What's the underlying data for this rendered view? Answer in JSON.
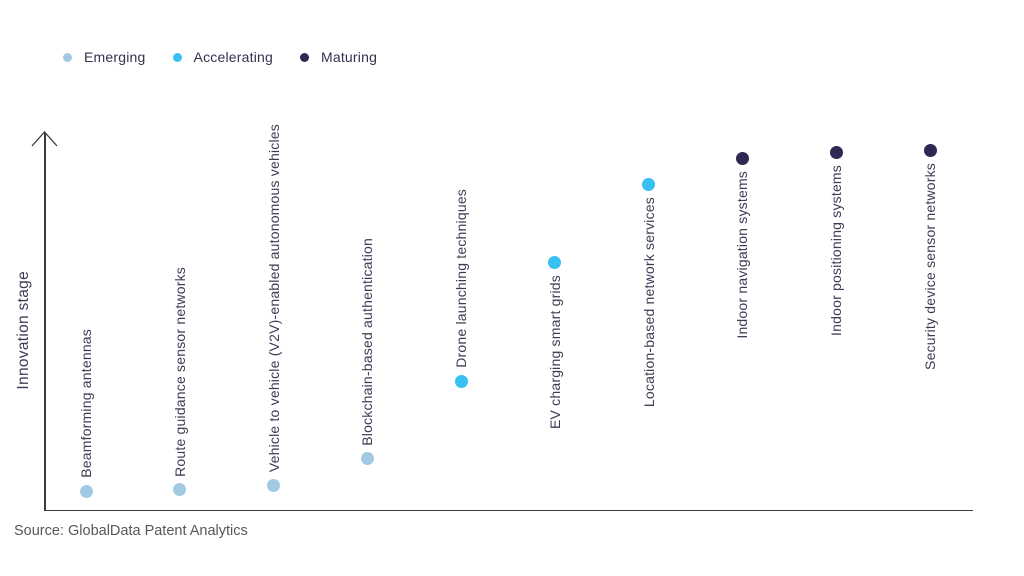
{
  "legend": {
    "items": [
      {
        "label": "Emerging",
        "color": "#a2c9e2"
      },
      {
        "label": "Accelerating",
        "color": "#38c0f2"
      },
      {
        "label": "Maturing",
        "color": "#2f2852"
      }
    ]
  },
  "axis": {
    "ylabel": "Innovation stage"
  },
  "source": "Source: GlobalData Patent Analytics",
  "chart_data": {
    "type": "scatter",
    "title": "",
    "xlabel": "",
    "ylabel": "Innovation stage",
    "y_axis": {
      "qualitative": true,
      "min": 0,
      "max": 100,
      "ticks": "none",
      "grid": false
    },
    "legend_position": "top-left",
    "legend": [
      "Emerging",
      "Accelerating",
      "Maturing"
    ],
    "stage_colors": {
      "Emerging": "#a2c9e2",
      "Accelerating": "#38c0f2",
      "Maturing": "#2f2852"
    },
    "points": [
      {
        "label": "Beamforming antennas",
        "stage": "Emerging",
        "value": 5.0
      },
      {
        "label": "Route guidance sensor networks",
        "stage": "Emerging",
        "value": 5.3
      },
      {
        "label": "Vehicle to vehicle (V2V)-enabled autonomous vehicles",
        "stage": "Emerging",
        "value": 6.6
      },
      {
        "label": "Blockchain-based authentication",
        "stage": "Emerging",
        "value": 13.5
      },
      {
        "label": "Drone launching techniques",
        "stage": "Accelerating",
        "value": 34.1
      },
      {
        "label": "EV charging smart grids",
        "stage": "Accelerating",
        "value": 65.6
      },
      {
        "label": "Location-based network services",
        "stage": "Accelerating",
        "value": 86.2
      },
      {
        "label": "Indoor navigation systems",
        "stage": "Maturing",
        "value": 93.1
      },
      {
        "label": "Indoor positioning systems",
        "stage": "Maturing",
        "value": 94.7
      },
      {
        "label": "Security device sensor networks",
        "stage": "Maturing",
        "value": 95.2
      }
    ]
  }
}
